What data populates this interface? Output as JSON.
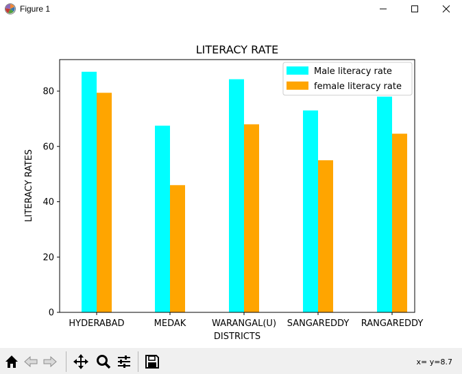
{
  "window": {
    "title": "Figure 1",
    "controls": {
      "minimize_icon": "minimize-icon",
      "maximize_icon": "maximize-icon",
      "close_icon": "close-icon"
    }
  },
  "chart_data": {
    "type": "bar",
    "title": "LITERACY RATE",
    "xlabel": "DISTRICTS",
    "ylabel": "LITERACY RATES",
    "categories": [
      "HYDERABAD",
      "MEDAK",
      "WARANGAL(U)",
      "SANGAREDDY",
      "RANGAREDDY"
    ],
    "series": [
      {
        "name": "Male literacy rate",
        "color": "#00ffff",
        "values": [
          87,
          67.5,
          84.3,
          73,
          78
        ]
      },
      {
        "name": "female literacy rate",
        "color": "#ffa500",
        "values": [
          79.4,
          46,
          68,
          55,
          64.6
        ]
      }
    ],
    "yticks": [
      0,
      20,
      40,
      60,
      80
    ],
    "ylim": [
      0,
      91.4
    ],
    "grid": false,
    "legend_position": "upper-right"
  },
  "toolbar": {
    "buttons": [
      "home-icon",
      "back-icon",
      "forward-icon",
      "pan-icon",
      "zoom-icon",
      "configure-subplots-icon",
      "save-icon"
    ],
    "coordinates": "x= y=8.7"
  }
}
